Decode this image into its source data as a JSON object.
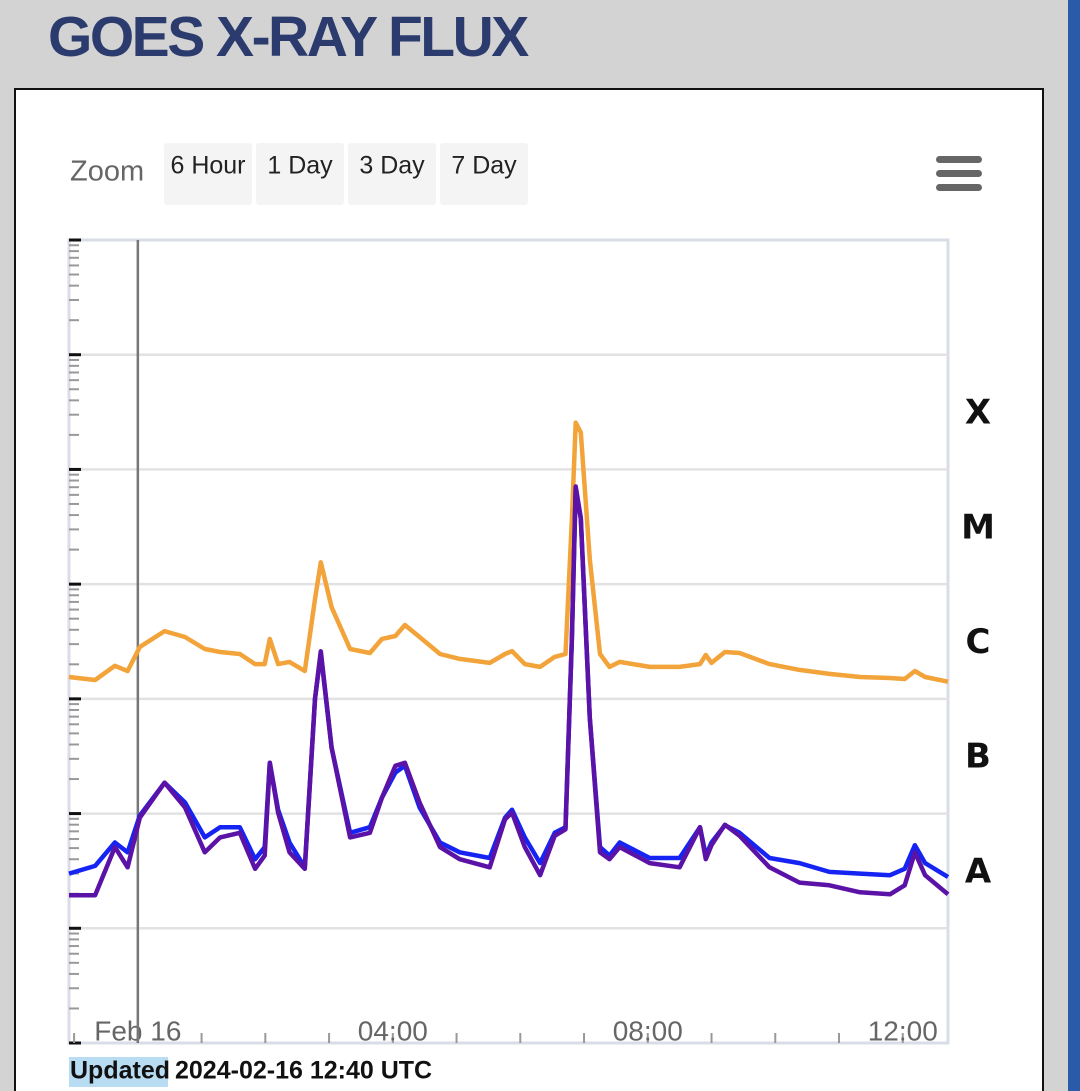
{
  "header": {
    "title": "GOES X-RAY FLUX"
  },
  "zoom": {
    "label": "Zoom",
    "buttons": [
      "6 Hour",
      "1 Day",
      "3 Day",
      "7 Day"
    ]
  },
  "updated": {
    "label": "Updated",
    "time": "2024-02-16 12:40 UTC"
  },
  "chart_data": {
    "type": "line",
    "log_y": true,
    "grid": true,
    "xlim": [
      -1.08,
      12.71
    ],
    "xticks": [
      {
        "value": 0,
        "label": "Feb 16"
      },
      {
        "value": 4,
        "label": "04:00"
      },
      {
        "value": 8,
        "label": "08:00"
      },
      {
        "value": 12,
        "label": "12:00"
      }
    ],
    "xminorticks": [
      -1,
      1,
      2,
      3,
      5,
      6,
      7,
      9,
      10,
      11
    ],
    "vline_x": 0,
    "ylim": [
      1e-09,
      0.01
    ],
    "yticks": [
      1e-09,
      1e-08,
      1e-07,
      1e-06,
      1e-05,
      0.0001,
      0.001,
      0.01
    ],
    "class_labels": [
      {
        "label": "X",
        "from": 0.0001,
        "to": 0.001
      },
      {
        "label": "M",
        "from": 1e-05,
        "to": 0.0001
      },
      {
        "label": "C",
        "from": 1e-06,
        "to": 1e-05
      },
      {
        "label": "B",
        "from": 1e-07,
        "to": 1e-06
      },
      {
        "label": "A",
        "from": 1e-08,
        "to": 1e-07
      }
    ],
    "x": [
      -1.08,
      -0.67,
      -0.36,
      -0.16,
      0.03,
      0.42,
      0.74,
      1.05,
      1.29,
      1.6,
      1.84,
      1.99,
      2.07,
      2.2,
      2.38,
      2.62,
      2.78,
      2.87,
      3.04,
      3.33,
      3.64,
      3.83,
      4.04,
      4.19,
      4.42,
      4.74,
      5.05,
      5.52,
      5.76,
      5.87,
      6.07,
      6.31,
      6.54,
      6.71,
      6.81,
      6.87,
      6.95,
      7.09,
      7.25,
      7.4,
      7.56,
      8.03,
      8.5,
      8.82,
      8.91,
      9.0,
      9.21,
      9.44,
      9.91,
      10.38,
      10.85,
      11.33,
      11.8,
      12.03,
      12.19,
      12.35,
      12.71
    ],
    "series": [
      {
        "color": "#f2a33a",
        "values": [
          1.55e-06,
          1.46e-06,
          1.94e-06,
          1.75e-06,
          2.83e-06,
          3.9e-06,
          3.46e-06,
          2.72e-06,
          2.56e-06,
          2.46e-06,
          2.01e-06,
          2.01e-06,
          3.33e-06,
          2.01e-06,
          2.1e-06,
          1.75e-06,
          7.4e-06,
          1.55e-05,
          6.3e-06,
          2.72e-06,
          2.51e-06,
          3.33e-06,
          3.53e-06,
          4.4e-06,
          3.46e-06,
          2.46e-06,
          2.23e-06,
          2.06e-06,
          2.46e-06,
          2.61e-06,
          2.01e-06,
          1.9e-06,
          2.32e-06,
          2.46e-06,
          3.67e-05,
          0.000256,
          0.00021,
          1.65e-05,
          2.46e-06,
          1.9e-06,
          2.1e-06,
          1.9e-06,
          1.9e-06,
          2.01e-06,
          2.41e-06,
          2.06e-06,
          2.56e-06,
          2.51e-06,
          2.01e-06,
          1.79e-06,
          1.65e-06,
          1.55e-06,
          1.52e-06,
          1.49e-06,
          1.75e-06,
          1.55e-06,
          1.41e-06
        ]
      },
      {
        "color": "#1524f2",
        "values": [
          3e-08,
          3.5e-08,
          5.6e-08,
          4.6e-08,
          9.6e-08,
          1.86e-07,
          1.25e-07,
          6.2e-08,
          7.6e-08,
          7.6e-08,
          4e-08,
          5.1e-08,
          2.77e-07,
          1.08e-07,
          5.6e-08,
          3.4e-08,
          1e-06,
          2.5e-06,
          3.75e-07,
          6.8e-08,
          7.6e-08,
          1.38e-07,
          2.28e-07,
          2.61e-07,
          1.13e-07,
          5.6e-08,
          4.6e-08,
          4.1e-08,
          9.2e-08,
          1.08e-07,
          6.2e-08,
          3.7e-08,
          6.8e-08,
          7.6e-08,
          3.4e-06,
          6.8e-05,
          3.75e-05,
          6.8e-07,
          5.1e-08,
          4.3e-08,
          5.6e-08,
          4.1e-08,
          4.1e-08,
          7.6e-08,
          4.3e-08,
          5.6e-08,
          7.9e-08,
          6.8e-08,
          4.1e-08,
          3.7e-08,
          3.1e-08,
          3e-08,
          2.9e-08,
          3.3e-08,
          5.3e-08,
          3.7e-08,
          2.8e-08
        ]
      },
      {
        "color": "#5b12a6",
        "values": [
          1.94e-08,
          1.94e-08,
          5.1e-08,
          3.4e-08,
          9.2e-08,
          1.86e-07,
          1.13e-07,
          4.6e-08,
          6.2e-08,
          6.8e-08,
          3.3e-08,
          4.3e-08,
          2.77e-07,
          1.02e-07,
          4.6e-08,
          3.3e-08,
          1e-06,
          2.6e-06,
          3.75e-07,
          6.2e-08,
          6.8e-08,
          1.38e-07,
          2.61e-07,
          2.77e-07,
          1.25e-07,
          5.1e-08,
          4e-08,
          3.4e-08,
          8.9e-08,
          1.02e-07,
          5.1e-08,
          2.9e-08,
          6.4e-08,
          7.3e-08,
          3.4e-06,
          7.1e-05,
          3.75e-05,
          6.8e-07,
          4.6e-08,
          4e-08,
          5.1e-08,
          3.7e-08,
          3.4e-08,
          7.6e-08,
          4e-08,
          5.3e-08,
          8e-08,
          6.4e-08,
          3.4e-08,
          2.5e-08,
          2.37e-08,
          2.06e-08,
          1.98e-08,
          2.37e-08,
          4.6e-08,
          2.9e-08,
          1.98e-08
        ]
      }
    ]
  }
}
